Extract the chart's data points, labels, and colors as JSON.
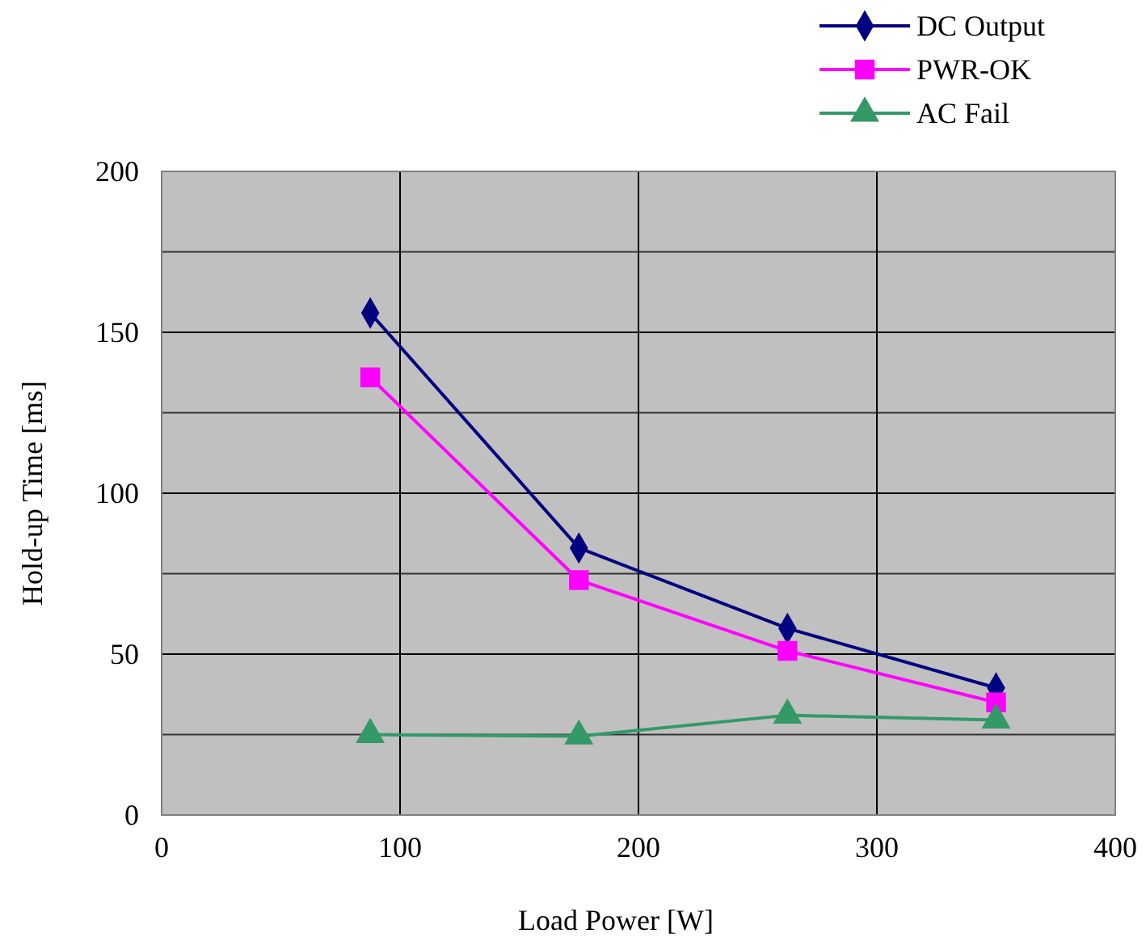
{
  "chart_data": {
    "type": "line",
    "xlabel": "Load Power [W]",
    "ylabel": "Hold-up Time [ms]",
    "x": [
      87.5,
      175,
      262.5,
      350
    ],
    "series": [
      {
        "name": "DC Output",
        "color": "#000080",
        "marker": "diamond",
        "values": [
          156,
          83,
          58,
          39.5
        ]
      },
      {
        "name": "PWR-OK",
        "color": "#ff00ff",
        "marker": "square",
        "values": [
          136,
          73,
          51,
          35
        ]
      },
      {
        "name": "AC Fail",
        "color": "#339966",
        "marker": "triangle",
        "values": [
          25,
          24.5,
          31,
          29.5
        ]
      }
    ],
    "xlim": [
      0,
      400
    ],
    "xticks": [
      0,
      100,
      200,
      300,
      400
    ],
    "ylim": [
      0,
      200
    ],
    "yticks": [
      0,
      50,
      100,
      150,
      200
    ],
    "grid": true,
    "legend": "top right"
  }
}
